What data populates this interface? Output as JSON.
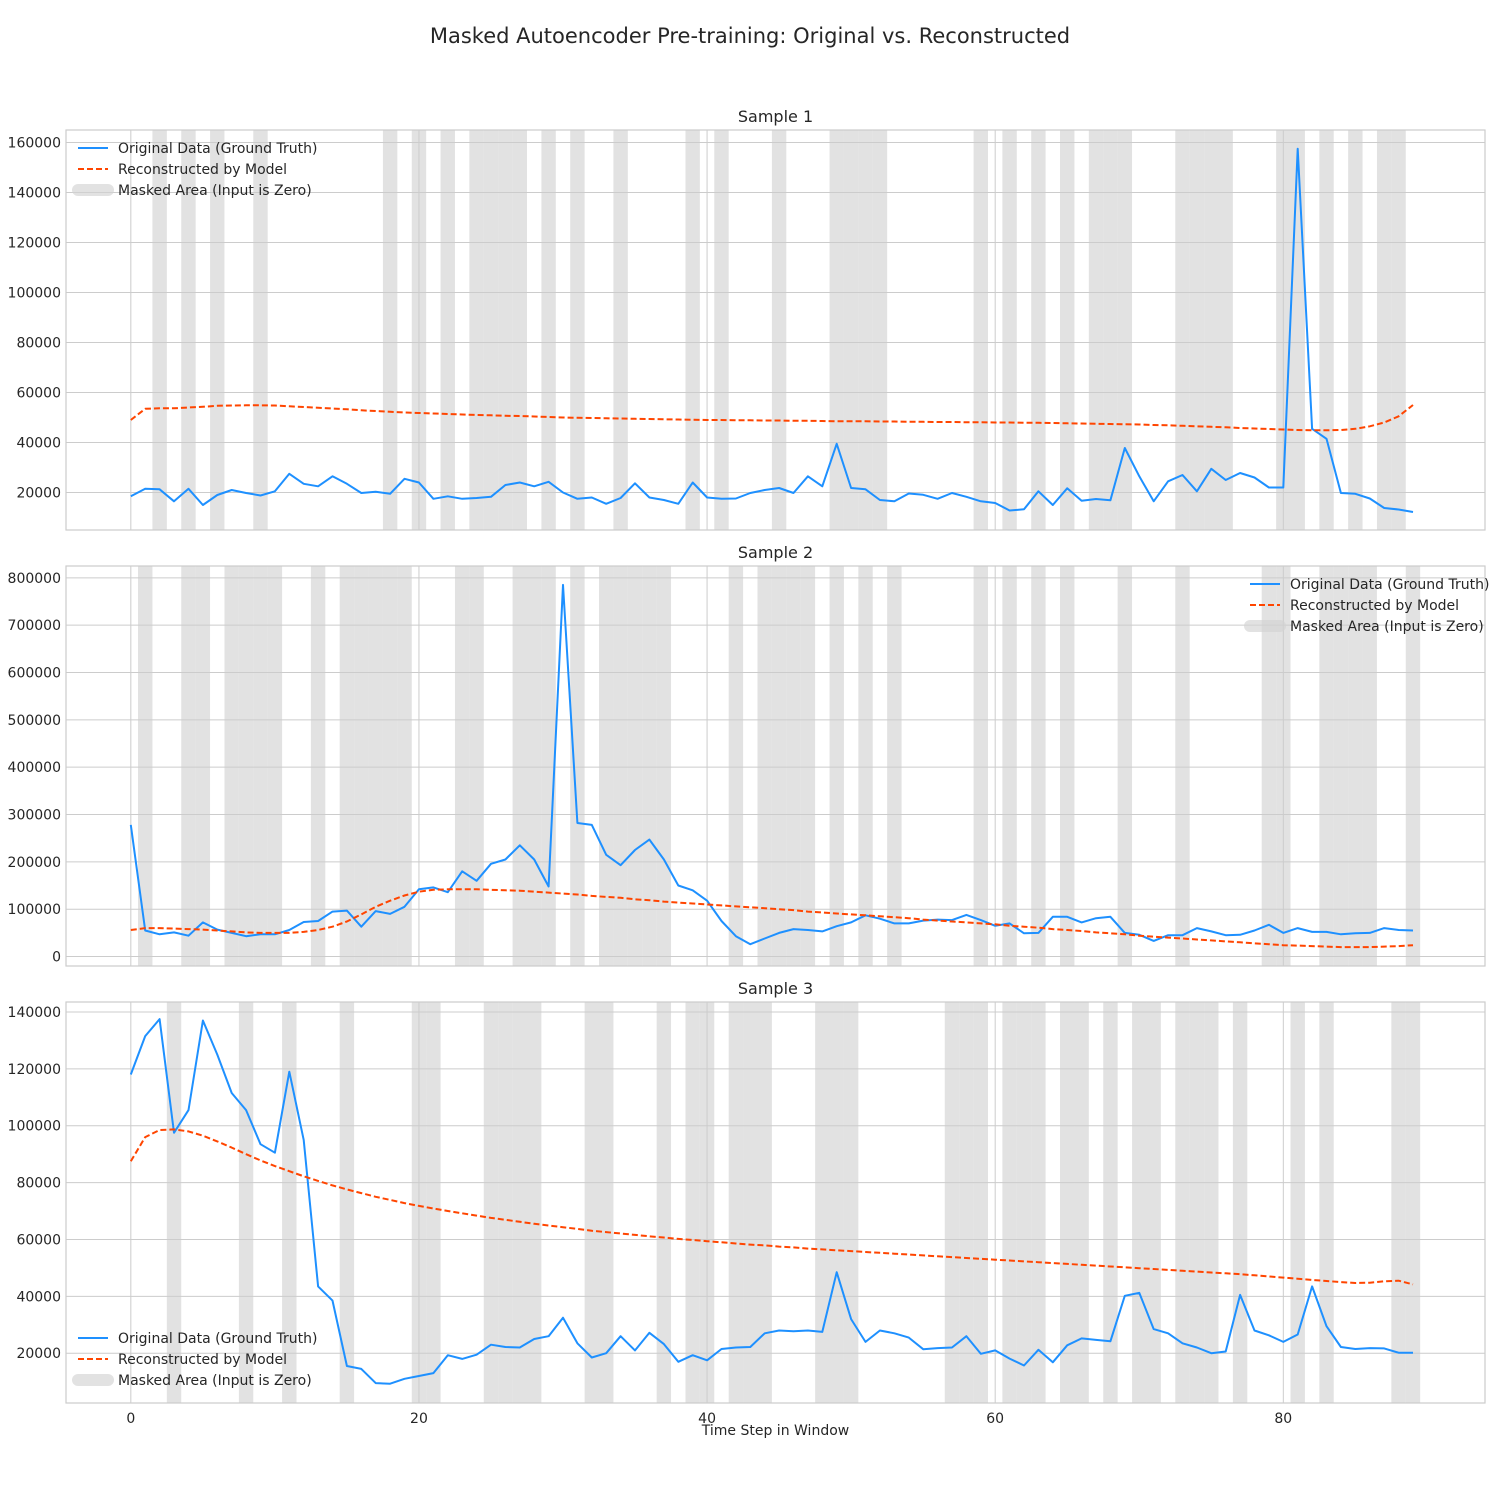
{
  "figure": {
    "suptitle": "Masked Autoencoder Pre-training: Original vs. Reconstructed",
    "xlabel": "Time Step in Window"
  },
  "colors": {
    "original": "#1e90ff",
    "reconstructed": "#ff4500",
    "mask": "#d3d3d3",
    "grid": "#cccccc",
    "spine": "#cccccc"
  },
  "chart_data": [
    {
      "type": "line",
      "title": "Sample 1",
      "xlim": [
        -4.5,
        94
      ],
      "ylim": [
        5000,
        165000
      ],
      "xticks": [
        0,
        20,
        40,
        60,
        80
      ],
      "yticks": [
        20000,
        40000,
        60000,
        80000,
        100000,
        120000,
        140000,
        160000
      ],
      "grid": true,
      "legend_loc": "upper left",
      "legend": [
        "Original Data (Ground Truth)",
        "Reconstructed by Model",
        "Masked Area (Input is Zero)"
      ],
      "masked_steps": [
        2,
        4,
        6,
        9,
        18,
        20,
        22,
        24,
        25,
        26,
        27,
        29,
        31,
        34,
        39,
        41,
        45,
        49,
        50,
        51,
        52,
        59,
        61,
        63,
        65,
        67,
        68,
        69,
        73,
        74,
        75,
        76,
        80,
        81,
        83,
        85,
        87,
        88
      ],
      "series": [
        {
          "name": "Original Data (Ground Truth)",
          "style": "solid",
          "values": [
            18500,
            21500,
            21300,
            16500,
            21500,
            15000,
            19000,
            21000,
            19800,
            18800,
            20500,
            27500,
            23500,
            22500,
            26500,
            23500,
            19800,
            20300,
            19500,
            25500,
            24000,
            17500,
            18500,
            17500,
            17800,
            18300,
            23000,
            24000,
            22500,
            24300,
            20000,
            17500,
            18000,
            15500,
            17800,
            23700,
            18000,
            17000,
            15500,
            24000,
            18000,
            17500,
            17600,
            19800,
            21000,
            21800,
            19800,
            26500,
            22500,
            39500,
            21800,
            21300,
            17000,
            16500,
            19600,
            19100,
            17500,
            19800,
            18300,
            16500,
            15800,
            12800,
            13300,
            20500,
            15000,
            21700,
            16700,
            17400,
            16900,
            37800,
            26500,
            16500,
            24500,
            27000,
            20500,
            29500,
            25000,
            27800,
            26000,
            22000,
            22000,
            157500,
            45500,
            41500,
            19800,
            19500,
            17600,
            13800,
            13200,
            12200
          ]
        },
        {
          "name": "Reconstructed by Model",
          "style": "dashed",
          "values": [
            49000,
            53500,
            53700,
            53700,
            54000,
            54300,
            54700,
            54800,
            54900,
            54900,
            54800,
            54500,
            54200,
            53900,
            53600,
            53300,
            52900,
            52600,
            52300,
            52000,
            51800,
            51600,
            51400,
            51200,
            51000,
            50900,
            50700,
            50600,
            50400,
            50200,
            50000,
            49900,
            49800,
            49700,
            49600,
            49500,
            49400,
            49300,
            49200,
            49100,
            49000,
            49000,
            48900,
            48900,
            48800,
            48800,
            48700,
            48700,
            48600,
            48500,
            48500,
            48500,
            48400,
            48400,
            48300,
            48300,
            48200,
            48200,
            48100,
            48100,
            48000,
            48000,
            47900,
            47900,
            47800,
            47700,
            47600,
            47500,
            47400,
            47300,
            47200,
            47000,
            46900,
            46700,
            46500,
            46300,
            46100,
            45800,
            45600,
            45400,
            45200,
            45000,
            44900,
            44900,
            45000,
            45500,
            46500,
            48000,
            50500,
            55000
          ]
        }
      ]
    },
    {
      "type": "line",
      "title": "Sample 2",
      "xlim": [
        -4.5,
        94
      ],
      "ylim": [
        -20000,
        825000
      ],
      "xticks": [
        0,
        20,
        40,
        60,
        80
      ],
      "yticks": [
        0,
        100000,
        200000,
        300000,
        400000,
        500000,
        600000,
        700000,
        800000
      ],
      "grid": true,
      "legend_loc": "upper right",
      "legend": [
        "Original Data (Ground Truth)",
        "Reconstructed by Model",
        "Masked Area (Input is Zero)"
      ],
      "masked_steps": [
        1,
        4,
        5,
        7,
        8,
        9,
        10,
        13,
        15,
        16,
        17,
        18,
        19,
        23,
        24,
        27,
        28,
        29,
        31,
        33,
        34,
        35,
        36,
        37,
        42,
        44,
        45,
        46,
        47,
        49,
        51,
        53,
        59,
        61,
        63,
        65,
        69,
        73,
        79,
        80,
        83,
        84,
        85,
        86,
        89
      ],
      "series": [
        {
          "name": "Original Data (Ground Truth)",
          "style": "solid",
          "values": [
            278000,
            55000,
            47000,
            51000,
            44000,
            72000,
            57000,
            50000,
            43000,
            47000,
            47000,
            56000,
            73000,
            75000,
            95000,
            97000,
            63000,
            96000,
            90000,
            105000,
            142000,
            146000,
            136000,
            180000,
            160000,
            196000,
            205000,
            235000,
            205000,
            148000,
            785000,
            282000,
            278000,
            215000,
            193000,
            225000,
            247000,
            205000,
            150000,
            140000,
            118000,
            75000,
            43000,
            26000,
            38000,
            50000,
            58000,
            56000,
            53000,
            64000,
            72000,
            87000,
            80000,
            70000,
            70000,
            76000,
            78000,
            77000,
            88000,
            77000,
            65000,
            70000,
            49000,
            50000,
            84000,
            84000,
            72000,
            81000,
            84000,
            50000,
            46000,
            33000,
            45000,
            45000,
            60000,
            53000,
            45000,
            46000,
            55000,
            67000,
            50000,
            60000,
            52000,
            52000,
            47000,
            49000,
            50000,
            60000,
            56000,
            55000
          ]
        },
        {
          "name": "Reconstructed by Model",
          "style": "dashed",
          "values": [
            56000,
            60000,
            60000,
            59000,
            58000,
            57000,
            55000,
            53000,
            51000,
            50000,
            50000,
            50000,
            52000,
            56000,
            63000,
            74000,
            89000,
            105000,
            118000,
            129000,
            137000,
            141000,
            142000,
            142000,
            142000,
            141000,
            140000,
            139000,
            137000,
            135000,
            133000,
            131000,
            128000,
            126000,
            124000,
            121000,
            119000,
            116000,
            114000,
            112000,
            110000,
            108000,
            106000,
            104000,
            102000,
            100000,
            98000,
            95000,
            93000,
            91000,
            89000,
            87000,
            85000,
            83000,
            81000,
            78000,
            76000,
            74000,
            72000,
            70000,
            68000,
            65000,
            63000,
            61000,
            58000,
            56000,
            54000,
            51000,
            49000,
            47000,
            44000,
            42000,
            40000,
            38000,
            36000,
            34000,
            32000,
            30000,
            28000,
            26000,
            24000,
            23000,
            22000,
            21000,
            20000,
            20000,
            20000,
            21000,
            22000,
            24000
          ]
        }
      ]
    },
    {
      "type": "line",
      "title": "Sample 3",
      "xlim": [
        -4.5,
        94
      ],
      "ylim": [
        2500,
        143500
      ],
      "xticks": [
        0,
        20,
        40,
        60,
        80
      ],
      "yticks": [
        20000,
        40000,
        60000,
        80000,
        100000,
        120000,
        140000
      ],
      "grid": true,
      "legend_loc": "lower left",
      "legend": [
        "Original Data (Ground Truth)",
        "Reconstructed by Model",
        "Masked Area (Input is Zero)"
      ],
      "masked_steps": [
        3,
        8,
        11,
        15,
        20,
        21,
        25,
        26,
        27,
        28,
        32,
        33,
        37,
        39,
        40,
        42,
        43,
        44,
        48,
        49,
        50,
        57,
        58,
        59,
        61,
        62,
        63,
        65,
        66,
        68,
        70,
        71,
        73,
        74,
        75,
        77,
        81,
        83,
        88,
        89
      ],
      "series": [
        {
          "name": "Original Data (Ground Truth)",
          "style": "solid",
          "values": [
            118000,
            131500,
            137500,
            97500,
            105500,
            137000,
            125000,
            111500,
            105500,
            93500,
            90500,
            119000,
            95000,
            43500,
            38500,
            15500,
            14500,
            9500,
            9300,
            11000,
            12000,
            13000,
            19300,
            18000,
            19500,
            23000,
            22200,
            22000,
            25000,
            26000,
            32500,
            23500,
            18500,
            20000,
            26000,
            21000,
            27200,
            23200,
            17000,
            19300,
            17500,
            21500,
            22000,
            22200,
            27000,
            28000,
            27700,
            28000,
            27500,
            48500,
            32000,
            24000,
            28000,
            27000,
            25500,
            21400,
            21800,
            22000,
            26000,
            19800,
            21000,
            18100,
            15700,
            21200,
            16800,
            22800,
            25200,
            24700,
            24200,
            40200,
            41200,
            28500,
            27000,
            23500,
            22000,
            20000,
            20600,
            40500,
            28000,
            26300,
            24000,
            26600,
            43500,
            29500,
            22200,
            21500,
            21800,
            21700,
            20200,
            20200
          ]
        },
        {
          "name": "Reconstructed by Model",
          "style": "dashed",
          "values": [
            87500,
            96000,
            98500,
            98700,
            98000,
            96500,
            94500,
            92300,
            90000,
            87800,
            85800,
            84000,
            82200,
            80600,
            79000,
            77600,
            76300,
            75000,
            73900,
            72800,
            71800,
            70900,
            70000,
            69200,
            68400,
            67600,
            66900,
            66200,
            65500,
            64900,
            64300,
            63700,
            63100,
            62600,
            62100,
            61600,
            61100,
            60700,
            60200,
            59800,
            59400,
            59000,
            58600,
            58200,
            57900,
            57500,
            57200,
            56800,
            56500,
            56200,
            55900,
            55600,
            55300,
            55000,
            54700,
            54400,
            54100,
            53800,
            53500,
            53200,
            52900,
            52600,
            52300,
            52000,
            51700,
            51400,
            51100,
            50800,
            50500,
            50200,
            49900,
            49600,
            49300,
            49000,
            48700,
            48400,
            48100,
            47800,
            47400,
            47000,
            46600,
            46200,
            45800,
            45400,
            45000,
            44700,
            44800,
            45300,
            45500,
            44200
          ]
        }
      ]
    }
  ]
}
